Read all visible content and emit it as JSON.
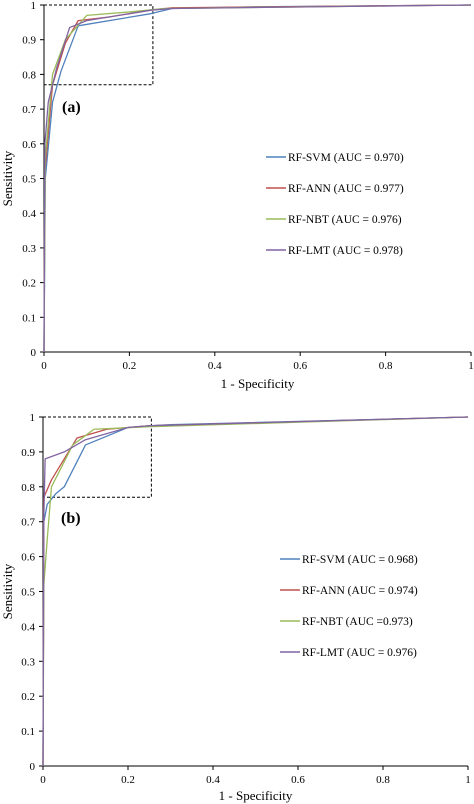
{
  "chart_data": [
    {
      "type": "line",
      "panel_label": "(a)",
      "xlabel": "1 - Specificity",
      "ylabel": "Sensitivity",
      "xlim": [
        0,
        1
      ],
      "ylim": [
        0,
        1
      ],
      "xticks": [
        "0",
        "0.2",
        "0.4",
        "0.6",
        "0.8",
        "1"
      ],
      "yticks": [
        "0",
        "0.1",
        "0.2",
        "0.3",
        "0.4",
        "0.5",
        "0.6",
        "0.7",
        "0.8",
        "0.9",
        "1"
      ],
      "grid": false,
      "legend_position": "right",
      "zoom_box": {
        "x": [
          0,
          0.255
        ],
        "y": [
          0.77,
          1
        ]
      },
      "series": [
        {
          "name": "RF-SVM (AUC = 0.970)",
          "color": "#4f81bd",
          "points": [
            [
              0,
              0
            ],
            [
              0.003,
              0.5
            ],
            [
              0.02,
              0.72
            ],
            [
              0.04,
              0.81
            ],
            [
              0.08,
              0.94
            ],
            [
              0.25,
              0.975
            ],
            [
              0.3,
              0.99
            ],
            [
              0.5,
              0.995
            ],
            [
              1,
              1
            ]
          ]
        },
        {
          "name": "RF-ANN (AUC = 0.977)",
          "color": "#c0504d",
          "points": [
            [
              0,
              0
            ],
            [
              0.002,
              0.52
            ],
            [
              0.02,
              0.77
            ],
            [
              0.05,
              0.89
            ],
            [
              0.08,
              0.955
            ],
            [
              0.15,
              0.965
            ],
            [
              0.25,
              0.985
            ],
            [
              0.3,
              0.992
            ],
            [
              1,
              1
            ]
          ]
        },
        {
          "name": "RF-NBT (AUC = 0.976)",
          "color": "#9bbb59",
          "points": [
            [
              0,
              0
            ],
            [
              0.003,
              0.56
            ],
            [
              0.02,
              0.8
            ],
            [
              0.05,
              0.9
            ],
            [
              0.1,
              0.97
            ],
            [
              0.2,
              0.98
            ],
            [
              0.28,
              0.99
            ],
            [
              1,
              1
            ]
          ]
        },
        {
          "name": "RF-LMT (AUC = 0.978)",
          "color": "#8064a2",
          "points": [
            [
              0,
              0
            ],
            [
              0.002,
              0.6
            ],
            [
              0.01,
              0.72
            ],
            [
              0.03,
              0.82
            ],
            [
              0.06,
              0.935
            ],
            [
              0.1,
              0.955
            ],
            [
              0.25,
              0.985
            ],
            [
              0.3,
              0.99
            ],
            [
              1,
              1
            ]
          ]
        }
      ]
    },
    {
      "type": "line",
      "panel_label": "(b)",
      "xlabel": "1 - Specificity",
      "ylabel": "Sensitivity",
      "xlim": [
        0,
        1
      ],
      "ylim": [
        0,
        1
      ],
      "xticks": [
        "0",
        "0.2",
        "0.4",
        "0.6",
        "0.8",
        "1"
      ],
      "yticks": [
        "0",
        "0.1",
        "0.2",
        "0.3",
        "0.4",
        "0.5",
        "0.6",
        "0.7",
        "0.8",
        "0.9",
        "1"
      ],
      "grid": false,
      "legend_position": "right",
      "zoom_box": {
        "x": [
          0,
          0.255
        ],
        "y": [
          0.77,
          1
        ]
      },
      "series": [
        {
          "name": "RF-SVM (AUC = 0.968)",
          "color": "#4f81bd",
          "points": [
            [
              0,
              0
            ],
            [
              0.002,
              0.7
            ],
            [
              0.01,
              0.75
            ],
            [
              0.03,
              0.78
            ],
            [
              0.05,
              0.8
            ],
            [
              0.1,
              0.92
            ],
            [
              0.2,
              0.97
            ],
            [
              0.25,
              0.975
            ],
            [
              0.3,
              0.978
            ],
            [
              1,
              1
            ]
          ]
        },
        {
          "name": "RF-ANN (AUC = 0.974)",
          "color": "#c0504d",
          "points": [
            [
              0,
              0
            ],
            [
              0.002,
              0.77
            ],
            [
              0.02,
              0.82
            ],
            [
              0.08,
              0.94
            ],
            [
              0.15,
              0.965
            ],
            [
              0.25,
              0.975
            ],
            [
              1,
              1
            ]
          ]
        },
        {
          "name": "RF-NBT (AUC =0.973)",
          "color": "#9bbb59",
          "points": [
            [
              0,
              0
            ],
            [
              0.002,
              0.52
            ],
            [
              0.01,
              0.65
            ],
            [
              0.02,
              0.8
            ],
            [
              0.07,
              0.92
            ],
            [
              0.12,
              0.965
            ],
            [
              0.25,
              0.972
            ],
            [
              1,
              1
            ]
          ]
        },
        {
          "name": "RF-LMT (AUC = 0.976)",
          "color": "#8064a2",
          "points": [
            [
              0,
              0
            ],
            [
              0.002,
              0.72
            ],
            [
              0.005,
              0.88
            ],
            [
              0.05,
              0.9
            ],
            [
              0.1,
              0.935
            ],
            [
              0.2,
              0.97
            ],
            [
              0.25,
              0.975
            ],
            [
              1,
              1
            ]
          ]
        }
      ]
    }
  ]
}
